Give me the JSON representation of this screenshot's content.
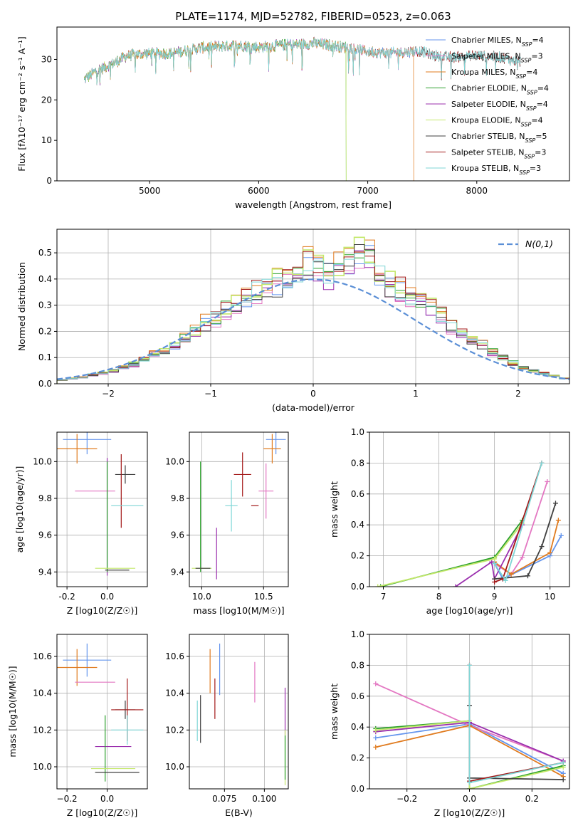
{
  "figure": {
    "title": "PLATE=1174, MJD=52782, FIBERID=0523, z=0.063"
  },
  "colors": [
    "#6495ed",
    "#e377c2",
    "#e07b1f",
    "#2ca02c",
    "#9b2fae",
    "#c4e86b",
    "#404040",
    "#a31818",
    "#7fd6d6"
  ],
  "chart_data": [
    {
      "id": "spectrum",
      "type": "line",
      "xlabel": "wavelength [Angstrom, rest frame]",
      "ylabel": "Flux [fλ10⁻¹⁷ erg cm⁻² s⁻¹ A⁻¹]",
      "xlim": [
        4150,
        8850
      ],
      "ylim": [
        0,
        38
      ],
      "xticks": [
        5000,
        6000,
        7000,
        8000
      ],
      "yticks": [
        0,
        10,
        20,
        30
      ],
      "grid": false,
      "legend_placement": "upper-right",
      "continuum": {
        "x": [
          4400,
          4500,
          4700,
          4800,
          5000,
          5200,
          5500,
          5800,
          6000,
          6200,
          6500,
          6800,
          7000,
          7200,
          7400,
          7500,
          7600,
          7800,
          8000,
          8200,
          8400
        ],
        "y": [
          25,
          27,
          29.5,
          31,
          31.5,
          31.5,
          33,
          33.5,
          33,
          33.5,
          34,
          33,
          32,
          31.5,
          32,
          32,
          31,
          30.5,
          31,
          30.5,
          29.5
        ]
      },
      "series": [
        {
          "name": "Chabrier MILES, N_SSP=4",
          "xrange": [
            4400,
            7450
          ]
        },
        {
          "name": "Salpeter MILES, N_SSP=3",
          "xrange": [
            4400,
            7450
          ]
        },
        {
          "name": "Kroupa MILES, N_SSP=4",
          "xrange": [
            4400,
            7420
          ],
          "dropout": 7420
        },
        {
          "name": "Chabrier ELODIE, N_SSP=4",
          "xrange": [
            4400,
            6800
          ],
          "dropout": 6800
        },
        {
          "name": "Salpeter ELODIE, N_SSP=4",
          "xrange": [
            4400,
            6800
          ]
        },
        {
          "name": "Kroupa ELODIE, N_SSP=4",
          "xrange": [
            4400,
            6800
          ],
          "dropout": 6800
        },
        {
          "name": "Chabrier STELIB, N_SSP=5",
          "xrange": [
            4400,
            8400
          ]
        },
        {
          "name": "Salpeter STELIB, N_SSP=3",
          "xrange": [
            4400,
            8400
          ]
        },
        {
          "name": "Kroupa STELIB, N_SSP=3",
          "xrange": [
            4400,
            8400
          ]
        }
      ]
    },
    {
      "id": "residuals",
      "type": "bar",
      "xlabel": "(data-model)/error",
      "ylabel": "Normed distribution",
      "xlim": [
        -2.5,
        2.5
      ],
      "ylim": [
        0,
        0.59
      ],
      "xticks": [
        -2,
        -1,
        0,
        1,
        2
      ],
      "yticks": [
        0.0,
        0.1,
        0.2,
        0.3,
        0.4,
        0.5
      ],
      "grid": true,
      "legend_entry": "N(0,1)",
      "bin_edges_from": -2.5,
      "bin_width": 0.1,
      "base_bins": [
        0.015,
        0.02,
        0.025,
        0.035,
        0.04,
        0.05,
        0.06,
        0.075,
        0.09,
        0.11,
        0.12,
        0.14,
        0.17,
        0.2,
        0.23,
        0.25,
        0.28,
        0.3,
        0.33,
        0.35,
        0.37,
        0.38,
        0.4,
        0.42,
        0.45,
        0.43,
        0.43,
        0.44,
        0.46,
        0.49,
        0.48,
        0.42,
        0.38,
        0.36,
        0.33,
        0.31,
        0.29,
        0.26,
        0.22,
        0.19,
        0.17,
        0.15,
        0.12,
        0.1,
        0.08,
        0.06,
        0.05,
        0.04,
        0.03,
        0.02
      ]
    },
    {
      "id": "age_vs_Z",
      "type": "scatter",
      "xlabel": "Z [log10(Z/Z☉)]",
      "ylabel": "age  [log10(age/yr)]",
      "xlim": [
        -0.25,
        0.2
      ],
      "ylim": [
        9.32,
        10.16
      ],
      "xticks": [
        -0.2,
        0.0
      ],
      "yticks": [
        9.4,
        9.6,
        9.8,
        10.0
      ],
      "grid": true,
      "points": [
        {
          "x": -0.1,
          "y": 10.12,
          "xerr": 0.12,
          "yerr": 0.08,
          "c": 0
        },
        {
          "x": -0.15,
          "y": 10.07,
          "xerr": 0.1,
          "yerr": 0.08,
          "c": 2
        },
        {
          "x": -0.06,
          "y": 9.84,
          "xerr": 0.1,
          "yerr": 0.0,
          "c": 1
        },
        {
          "x": 0.09,
          "y": 9.93,
          "xerr": 0.05,
          "yerr": 0.05,
          "c": 6
        },
        {
          "x": 0.07,
          "y": 9.84,
          "xerr": 0.0,
          "yerr": 0.2,
          "c": 7
        },
        {
          "x": 0.1,
          "y": 9.76,
          "xerr": 0.08,
          "yerr": 0.0,
          "c": 8
        },
        {
          "x": 0.0,
          "y": 9.7,
          "xerr": 0.0,
          "yerr": 0.32,
          "c": 4
        },
        {
          "x": 0.0,
          "y": 9.7,
          "xerr": 0.0,
          "yerr": 0.3,
          "c": 3
        },
        {
          "x": 0.04,
          "y": 9.42,
          "xerr": 0.1,
          "yerr": 0.0,
          "c": 5
        },
        {
          "x": 0.05,
          "y": 9.41,
          "xerr": 0.06,
          "yerr": 0.0,
          "c": 6
        }
      ]
    },
    {
      "id": "age_vs_mass",
      "type": "scatter",
      "xlabel": "mass [log10(M/M☉)]",
      "ylabel": "",
      "xlim": [
        9.9,
        10.7
      ],
      "ylim": [
        9.32,
        10.16
      ],
      "xticks": [
        10.0,
        10.5
      ],
      "yticks": [
        9.4,
        9.6,
        9.8,
        10.0
      ],
      "grid": true,
      "points": [
        {
          "x": 10.6,
          "y": 10.12,
          "xerr": 0.08,
          "yerr": 0.08,
          "c": 0
        },
        {
          "x": 10.57,
          "y": 10.07,
          "xerr": 0.07,
          "yerr": 0.08,
          "c": 2
        },
        {
          "x": 10.33,
          "y": 9.93,
          "xerr": 0.07,
          "yerr": 0.12,
          "c": 7
        },
        {
          "x": 10.52,
          "y": 9.84,
          "xerr": 0.06,
          "yerr": 0.15,
          "c": 1
        },
        {
          "x": 10.43,
          "y": 9.76,
          "xerr": 0.03,
          "yerr": 0.0,
          "c": 7
        },
        {
          "x": 10.24,
          "y": 9.76,
          "xerr": 0.05,
          "yerr": 0.14,
          "c": 8
        },
        {
          "x": 10.12,
          "y": 9.5,
          "xerr": 0.0,
          "yerr": 0.14,
          "c": 4
        },
        {
          "x": 9.99,
          "y": 9.7,
          "xerr": 0.0,
          "yerr": 0.3,
          "c": 3
        },
        {
          "x": 10.0,
          "y": 9.42,
          "xerr": 0.08,
          "yerr": 0.0,
          "c": 5
        },
        {
          "x": 10.01,
          "y": 9.42,
          "xerr": 0.06,
          "yerr": 0.0,
          "c": 6
        }
      ]
    },
    {
      "id": "weight_vs_age",
      "type": "line",
      "xlabel": "age  [log10(age/yr)]",
      "ylabel": "mass weight",
      "xlim": [
        6.75,
        10.35
      ],
      "ylim": [
        0,
        1
      ],
      "xticks": [
        7,
        8,
        9,
        10
      ],
      "yticks": [
        0.0,
        0.2,
        0.4,
        0.6,
        0.8,
        1.0
      ],
      "grid": true,
      "series": [
        {
          "c": 0,
          "x": [
            9.0,
            9.15,
            10.0,
            10.2
          ],
          "y": [
            0.15,
            0.05,
            0.2,
            0.33
          ]
        },
        {
          "c": 1,
          "x": [
            9.0,
            9.3,
            9.5,
            9.95
          ],
          "y": [
            0.15,
            0.08,
            0.19,
            0.68
          ]
        },
        {
          "c": 2,
          "x": [
            9.0,
            9.3,
            10.0,
            10.15
          ],
          "y": [
            0.16,
            0.08,
            0.22,
            0.43
          ]
        },
        {
          "c": 3,
          "x": [
            6.95,
            9.0,
            9.5
          ],
          "y": [
            0.0,
            0.19,
            0.43
          ]
        },
        {
          "c": 4,
          "x": [
            8.3,
            8.95,
            9.0,
            9.5
          ],
          "y": [
            0.0,
            0.16,
            0.05,
            0.4
          ]
        },
        {
          "c": 5,
          "x": [
            6.9,
            9.0,
            9.5
          ],
          "y": [
            0.0,
            0.18,
            0.41
          ]
        },
        {
          "c": 6,
          "x": [
            9.0,
            9.6,
            9.85,
            10.1
          ],
          "y": [
            0.05,
            0.07,
            0.26,
            0.54
          ]
        },
        {
          "c": 7,
          "x": [
            9.0,
            9.15,
            9.85
          ],
          "y": [
            0.03,
            0.05,
            0.8
          ]
        },
        {
          "c": 8,
          "x": [
            9.0,
            9.2,
            9.85
          ],
          "y": [
            0.15,
            0.04,
            0.8
          ]
        }
      ]
    },
    {
      "id": "mass_vs_Z",
      "type": "scatter",
      "xlabel": "Z [log10(Z/Z☉)]",
      "ylabel": "mass [log10(M/M☉)]",
      "xlim": [
        -0.25,
        0.2
      ],
      "ylim": [
        9.88,
        10.72
      ],
      "xticks": [
        -0.2,
        0.0
      ],
      "yticks": [
        10.0,
        10.2,
        10.4,
        10.6
      ],
      "grid": true,
      "points": [
        {
          "x": -0.1,
          "y": 10.58,
          "xerr": 0.12,
          "yerr": 0.09,
          "c": 0
        },
        {
          "x": -0.15,
          "y": 10.54,
          "xerr": 0.1,
          "yerr": 0.1,
          "c": 2
        },
        {
          "x": -0.06,
          "y": 10.46,
          "xerr": 0.1,
          "yerr": 0.0,
          "c": 1
        },
        {
          "x": 0.09,
          "y": 10.31,
          "xerr": 0.05,
          "yerr": 0.05,
          "c": 6
        },
        {
          "x": 0.1,
          "y": 10.31,
          "xerr": 0.08,
          "yerr": 0.17,
          "c": 7
        },
        {
          "x": 0.1,
          "y": 10.2,
          "xerr": 0.08,
          "yerr": 0.08,
          "c": 8
        },
        {
          "x": 0.03,
          "y": 10.11,
          "xerr": 0.09,
          "yerr": 0.0,
          "c": 4
        },
        {
          "x": -0.01,
          "y": 10.1,
          "xerr": 0.0,
          "yerr": 0.18,
          "c": 3
        },
        {
          "x": 0.03,
          "y": 9.99,
          "xerr": 0.11,
          "yerr": 0.0,
          "c": 5
        },
        {
          "x": 0.05,
          "y": 9.97,
          "xerr": 0.11,
          "yerr": 0.0,
          "c": 6
        }
      ]
    },
    {
      "id": "mass_vs_ebv",
      "type": "scatter",
      "xlabel": "E(B-V)",
      "ylabel": "",
      "xlim": [
        0.053,
        0.115
      ],
      "ylim": [
        9.88,
        10.72
      ],
      "xticks": [
        0.075,
        0.1
      ],
      "yticks": [
        10.0,
        10.2,
        10.4,
        10.6
      ],
      "grid": true,
      "points": [
        {
          "x": 0.072,
          "y": 10.53,
          "xerr": 0.0,
          "yerr": 0.14,
          "c": 0
        },
        {
          "x": 0.066,
          "y": 10.52,
          "xerr": 0.0,
          "yerr": 0.12,
          "c": 2
        },
        {
          "x": 0.094,
          "y": 10.46,
          "xerr": 0.0,
          "yerr": 0.11,
          "c": 1
        },
        {
          "x": 0.069,
          "y": 10.37,
          "xerr": 0.0,
          "yerr": 0.11,
          "c": 7
        },
        {
          "x": 0.06,
          "y": 10.26,
          "xerr": 0.0,
          "yerr": 0.13,
          "c": 6
        },
        {
          "x": 0.058,
          "y": 10.25,
          "xerr": 0.0,
          "yerr": 0.11,
          "c": 8
        },
        {
          "x": 0.113,
          "y": 10.3,
          "xerr": 0.0,
          "yerr": 0.13,
          "c": 4
        },
        {
          "x": 0.113,
          "y": 10.05,
          "xerr": 0.0,
          "yerr": 0.15,
          "c": 5
        },
        {
          "x": 0.113,
          "y": 10.05,
          "xerr": 0.0,
          "yerr": 0.12,
          "c": 3
        }
      ]
    },
    {
      "id": "weight_vs_Z",
      "type": "line",
      "xlabel": "Z [log10(Z/Z☉)]",
      "ylabel": "mass weight",
      "xlim": [
        -0.32,
        0.32
      ],
      "ylim": [
        0,
        1
      ],
      "xticks": [
        -0.2,
        0.0,
        0.2
      ],
      "yticks": [
        0.0,
        0.2,
        0.4,
        0.6,
        0.8,
        1.0
      ],
      "grid": true,
      "series": [
        {
          "c": 0,
          "x": [
            -0.3,
            0.0,
            0.3
          ],
          "y": [
            0.33,
            0.42,
            0.1
          ]
        },
        {
          "c": 1,
          "x": [
            -0.3,
            0.0,
            0.3
          ],
          "y": [
            0.68,
            0.41,
            0.18
          ]
        },
        {
          "c": 2,
          "x": [
            -0.3,
            0.0,
            0.3
          ],
          "y": [
            0.27,
            0.41,
            0.08
          ]
        },
        {
          "c": 3,
          "x": [
            -0.3,
            0.0,
            0.0,
            0.3
          ],
          "y": [
            0.39,
            0.44,
            0.0,
            0.15
          ]
        },
        {
          "c": 4,
          "x": [
            -0.3,
            0.0,
            0.3
          ],
          "y": [
            0.37,
            0.43,
            0.18
          ]
        },
        {
          "c": 5,
          "x": [
            -0.3,
            0.0,
            0.0,
            0.3
          ],
          "y": [
            0.38,
            0.44,
            0.0,
            0.14
          ]
        },
        {
          "c": 6,
          "x": [
            0.0,
            0.0,
            0.3
          ],
          "y": [
            0.54,
            0.07,
            0.06
          ]
        },
        {
          "c": 7,
          "x": [
            0.0,
            0.0,
            0.3
          ],
          "y": [
            0.8,
            0.05,
            0.17
          ]
        },
        {
          "c": 8,
          "x": [
            0.0,
            0.0,
            0.3
          ],
          "y": [
            0.8,
            0.04,
            0.17
          ]
        }
      ]
    }
  ]
}
